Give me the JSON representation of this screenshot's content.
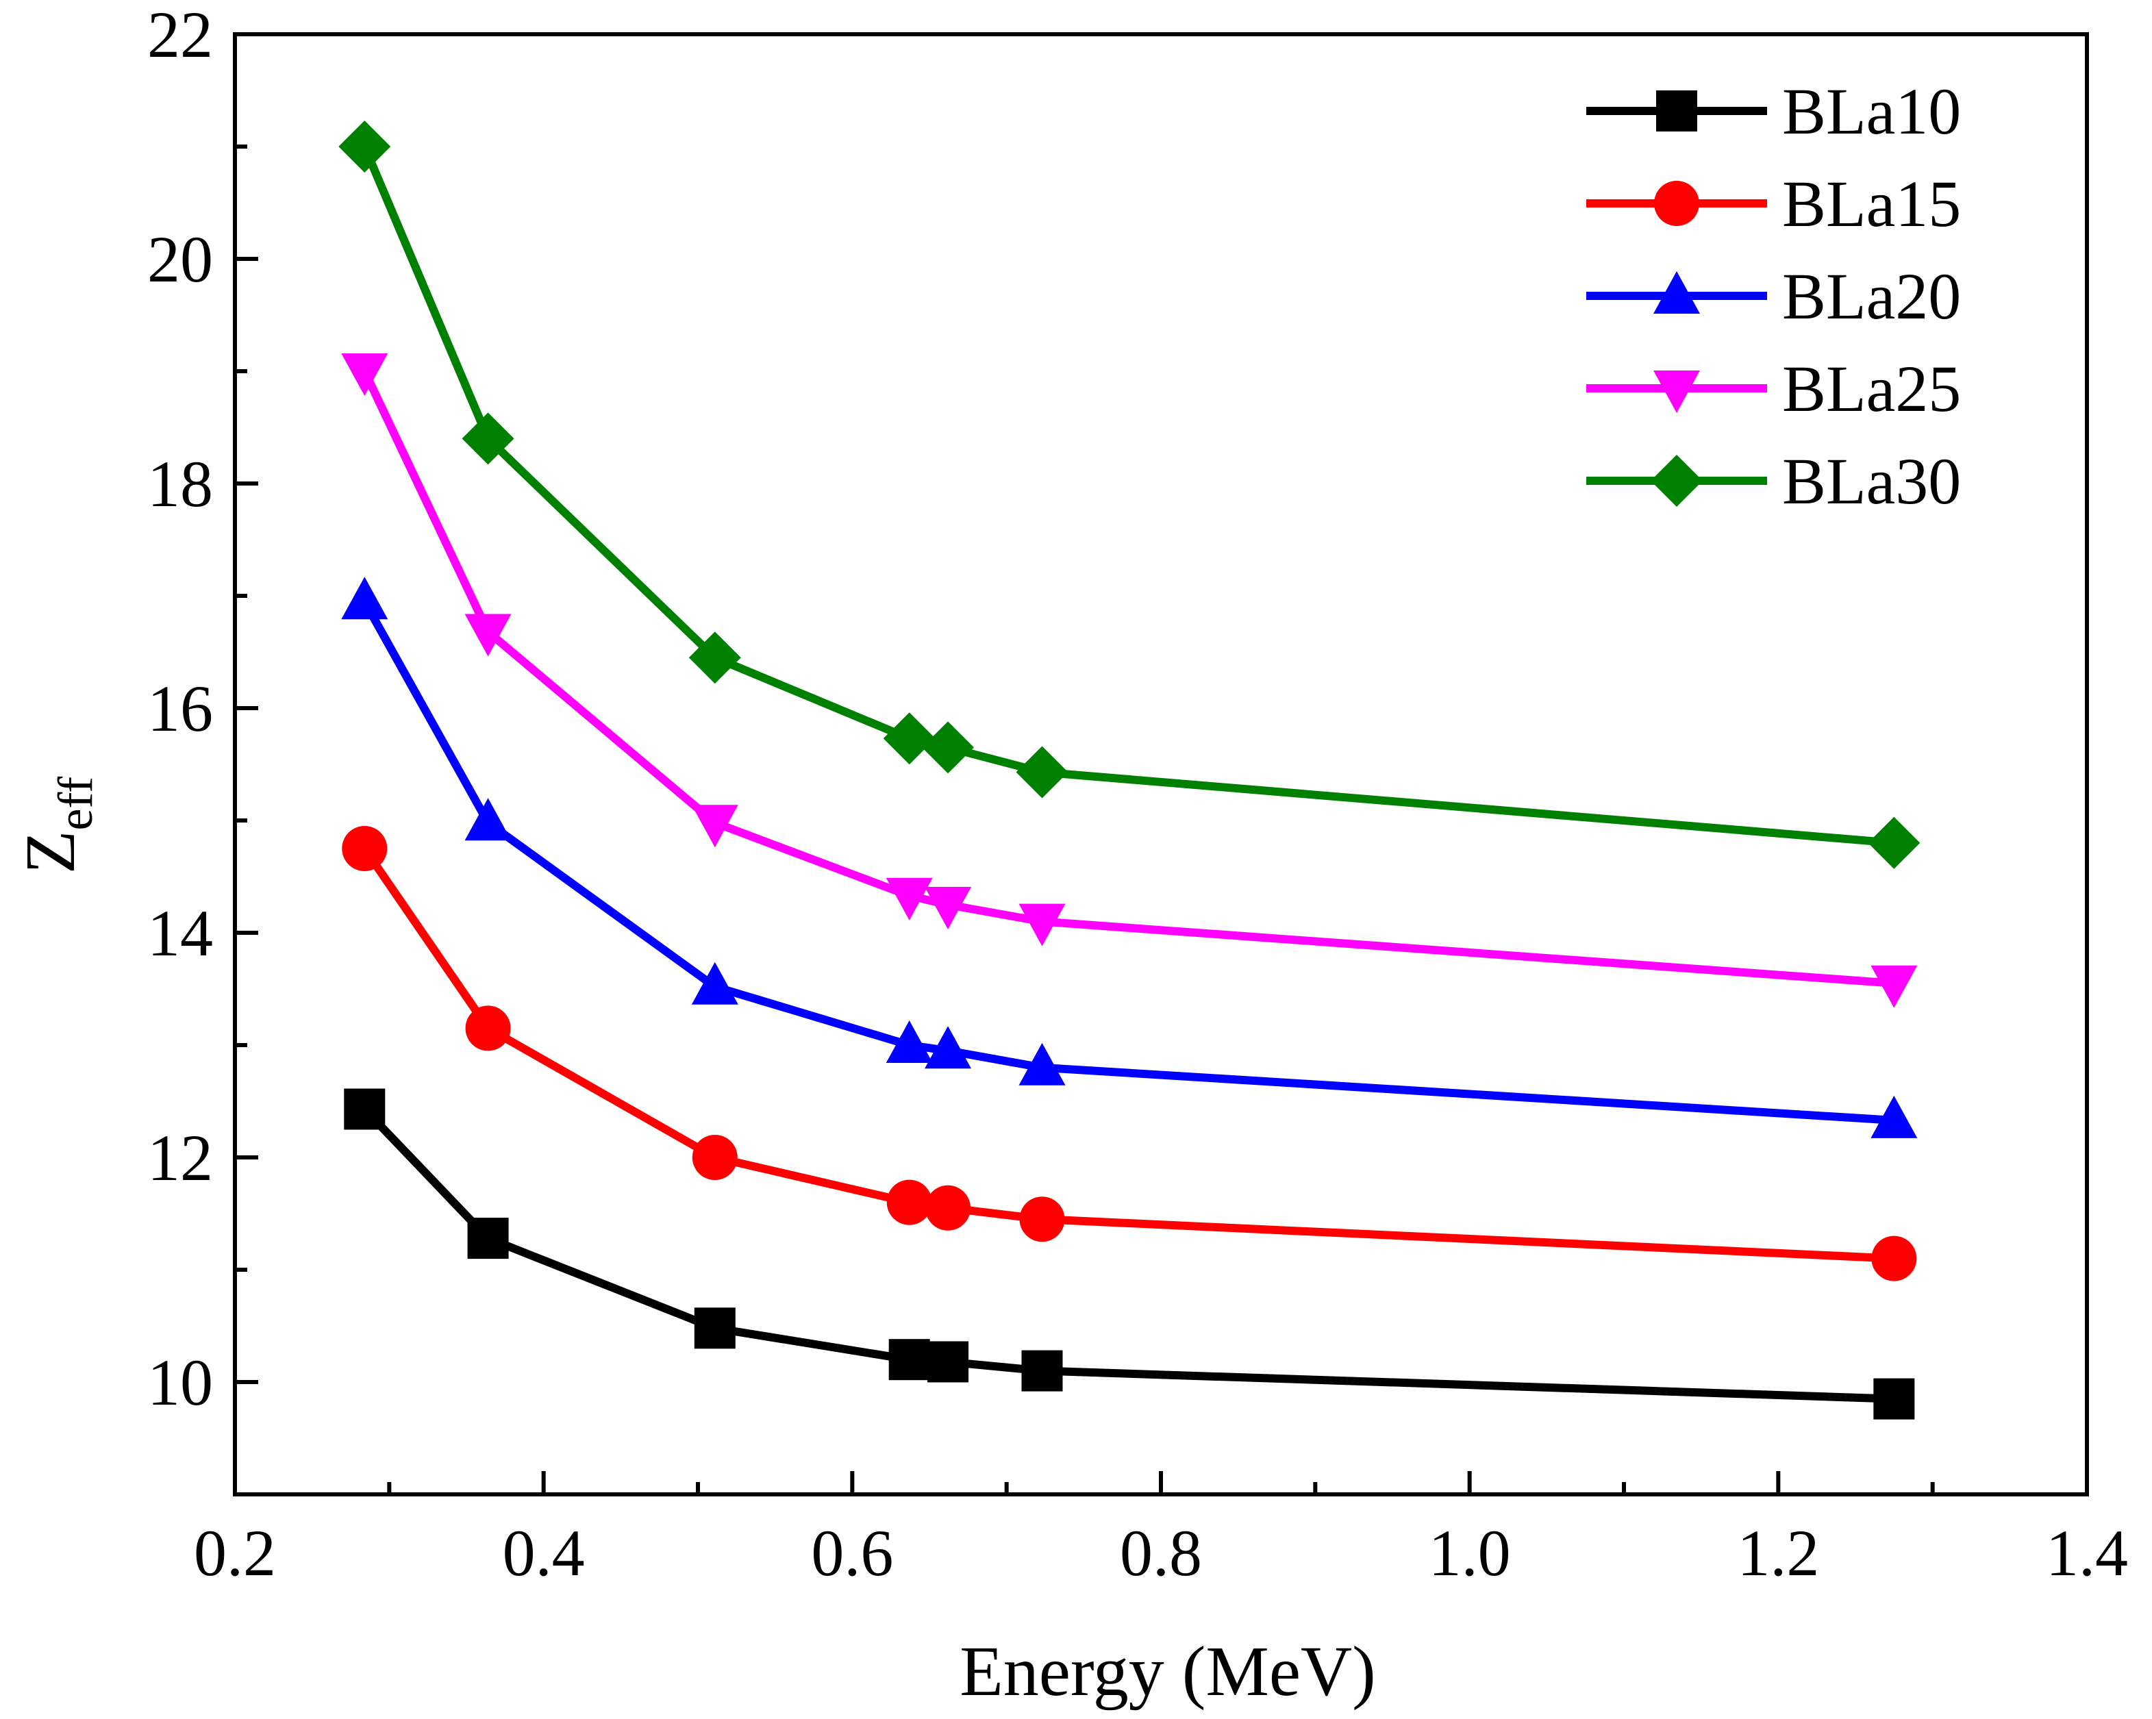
{
  "chart_data": {
    "type": "line",
    "xlabel": "Energy (MeV)",
    "ylabel": {
      "main": "Z",
      "sub": "eff"
    },
    "xlim": [
      0.2,
      1.4
    ],
    "ylim": [
      9.0,
      22.0
    ],
    "x_ticks": [
      0.2,
      0.4,
      0.6,
      0.8,
      1.0,
      1.2,
      1.4
    ],
    "x_tick_labels": [
      "0.2",
      "0.4",
      "0.6",
      "0.8",
      "1.0",
      "1.2",
      "1.4"
    ],
    "y_ticks": [
      10,
      12,
      14,
      16,
      18,
      20,
      22
    ],
    "y_tick_labels": [
      "10",
      "12",
      "14",
      "16",
      "18",
      "20",
      "22"
    ],
    "legend_position": "top-right",
    "grid": false,
    "x": [
      0.284,
      0.364,
      0.511,
      0.637,
      0.662,
      0.723,
      1.275
    ],
    "series": [
      {
        "name": "BLa10",
        "color": "#000000",
        "marker": "square",
        "values": [
          12.43,
          11.28,
          10.48,
          10.2,
          10.18,
          10.1,
          9.85
        ]
      },
      {
        "name": "BLa15",
        "color": "#ff0000",
        "marker": "circle",
        "values": [
          14.75,
          13.15,
          12.0,
          11.6,
          11.55,
          11.45,
          11.1
        ]
      },
      {
        "name": "BLa20",
        "color": "#0000ff",
        "marker": "triangle-up",
        "values": [
          16.95,
          14.98,
          13.52,
          13.0,
          12.95,
          12.8,
          12.33
        ]
      },
      {
        "name": "BLa25",
        "color": "#ff00ff",
        "marker": "triangle-down",
        "values": [
          19.0,
          16.68,
          14.98,
          14.33,
          14.25,
          14.1,
          13.55
        ]
      },
      {
        "name": "BLa30",
        "color": "#008000",
        "marker": "diamond",
        "values": [
          21.0,
          18.4,
          16.45,
          15.73,
          15.65,
          15.43,
          14.8
        ]
      }
    ]
  }
}
